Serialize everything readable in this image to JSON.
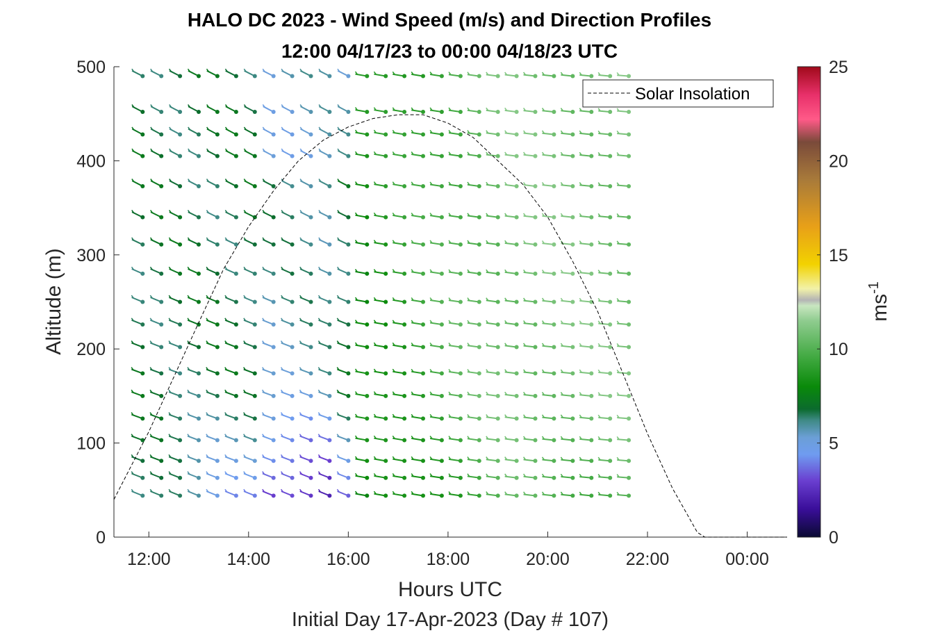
{
  "chart_data": {
    "type": "wind-barb",
    "title_line1": "HALO DC 2023 - Wind Speed (m/s) and Direction Profiles",
    "title_line2": "12:00 04/17/23 to 00:00 04/18/23  UTC",
    "xlabel": "Hours UTC",
    "ylabel": "Altitude (m)",
    "caption": "Initial Day 17-Apr-2023 (Day # 107)",
    "xlim_hours": [
      11.3,
      24.8
    ],
    "ylim": [
      0,
      500
    ],
    "x_ticks": [
      {
        "value": 12,
        "label": "12:00"
      },
      {
        "value": 14,
        "label": "14:00"
      },
      {
        "value": 16,
        "label": "16:00"
      },
      {
        "value": 18,
        "label": "18:00"
      },
      {
        "value": 20,
        "label": "20:00"
      },
      {
        "value": 22,
        "label": "22:00"
      },
      {
        "value": 24,
        "label": "00:00"
      }
    ],
    "y_ticks": [
      {
        "value": 0,
        "label": "0"
      },
      {
        "value": 100,
        "label": "100"
      },
      {
        "value": 200,
        "label": "200"
      },
      {
        "value": 300,
        "label": "300"
      },
      {
        "value": 400,
        "label": "400"
      },
      {
        "value": 500,
        "label": "500"
      }
    ],
    "colorbar": {
      "label": "ms",
      "label_superscript": "-1",
      "range": [
        0,
        25
      ],
      "ticks": [
        {
          "value": 0,
          "label": "0"
        },
        {
          "value": 5,
          "label": "5"
        },
        {
          "value": 10,
          "label": "10"
        },
        {
          "value": 15,
          "label": "15"
        },
        {
          "value": 20,
          "label": "20"
        },
        {
          "value": 25,
          "label": "25"
        }
      ],
      "stops": [
        {
          "v": 0,
          "color": "#0a0a32"
        },
        {
          "v": 1.5,
          "color": "#3a0e9a"
        },
        {
          "v": 3,
          "color": "#6a3fd0"
        },
        {
          "v": 4.4,
          "color": "#6f9cf0"
        },
        {
          "v": 5.3,
          "color": "#6b9fd6"
        },
        {
          "v": 6.2,
          "color": "#3f8a86"
        },
        {
          "v": 6.8,
          "color": "#0b6b2e"
        },
        {
          "v": 8,
          "color": "#0a8a0a"
        },
        {
          "v": 9.5,
          "color": "#3fa83f"
        },
        {
          "v": 11.5,
          "color": "#8fcc8f"
        },
        {
          "v": 12.3,
          "color": "#c8e6c0"
        },
        {
          "v": 12.6,
          "color": "#b4b4b4"
        },
        {
          "v": 13.2,
          "color": "#f2f2a8"
        },
        {
          "v": 14.5,
          "color": "#f2d200"
        },
        {
          "v": 16.5,
          "color": "#e8a018"
        },
        {
          "v": 19,
          "color": "#a87a3a"
        },
        {
          "v": 21,
          "color": "#7a4a3a"
        },
        {
          "v": 22.2,
          "color": "#ff5a88"
        },
        {
          "v": 23.5,
          "color": "#e8306a"
        },
        {
          "v": 25,
          "color": "#a00a1a"
        }
      ]
    },
    "barbs": {
      "times_hours": [
        11.875,
        12.25,
        12.625,
        13.0,
        13.375,
        13.75,
        14.125,
        14.5,
        14.875,
        15.25,
        15.625,
        16.0,
        16.375,
        16.75,
        17.125,
        17.5,
        17.875,
        18.25,
        18.625,
        19.0,
        19.375,
        19.75,
        20.125,
        20.5,
        20.875,
        21.25,
        21.625
      ],
      "altitudes_m": [
        44,
        63,
        81,
        103,
        126,
        150,
        174,
        202,
        226,
        250,
        280,
        311,
        340,
        373,
        405,
        428,
        452,
        490
      ],
      "direction_note": "wind from west-northwest in morning turning to westerly in afternoon",
      "speed_ms_profile_note": "approx 3-6 m/s before 16:30 near surface, 7-11 m/s in afternoon"
    },
    "legend": {
      "position": "top-right",
      "entries": [
        {
          "name": "Solar Insolation",
          "style": "dashed",
          "color": "#000000"
        }
      ]
    },
    "solar_insolation_curve": {
      "note": "relative curve scaled to altitude axis",
      "points": [
        [
          11.3,
          40
        ],
        [
          12.0,
          112
        ],
        [
          12.5,
          170
        ],
        [
          13.0,
          228
        ],
        [
          13.5,
          285
        ],
        [
          14.0,
          330
        ],
        [
          14.5,
          368
        ],
        [
          15.0,
          400
        ],
        [
          15.5,
          422
        ],
        [
          16.0,
          436
        ],
        [
          16.5,
          445
        ],
        [
          17.0,
          449
        ],
        [
          17.5,
          449
        ],
        [
          18.0,
          440
        ],
        [
          18.5,
          425
        ],
        [
          19.0,
          400
        ],
        [
          19.5,
          375
        ],
        [
          20.0,
          340
        ],
        [
          20.5,
          293
        ],
        [
          21.0,
          240
        ],
        [
          21.5,
          175
        ],
        [
          22.0,
          110
        ],
        [
          22.5,
          52
        ],
        [
          23.0,
          5
        ],
        [
          23.15,
          0
        ],
        [
          24.8,
          0
        ]
      ]
    },
    "grid": false
  }
}
